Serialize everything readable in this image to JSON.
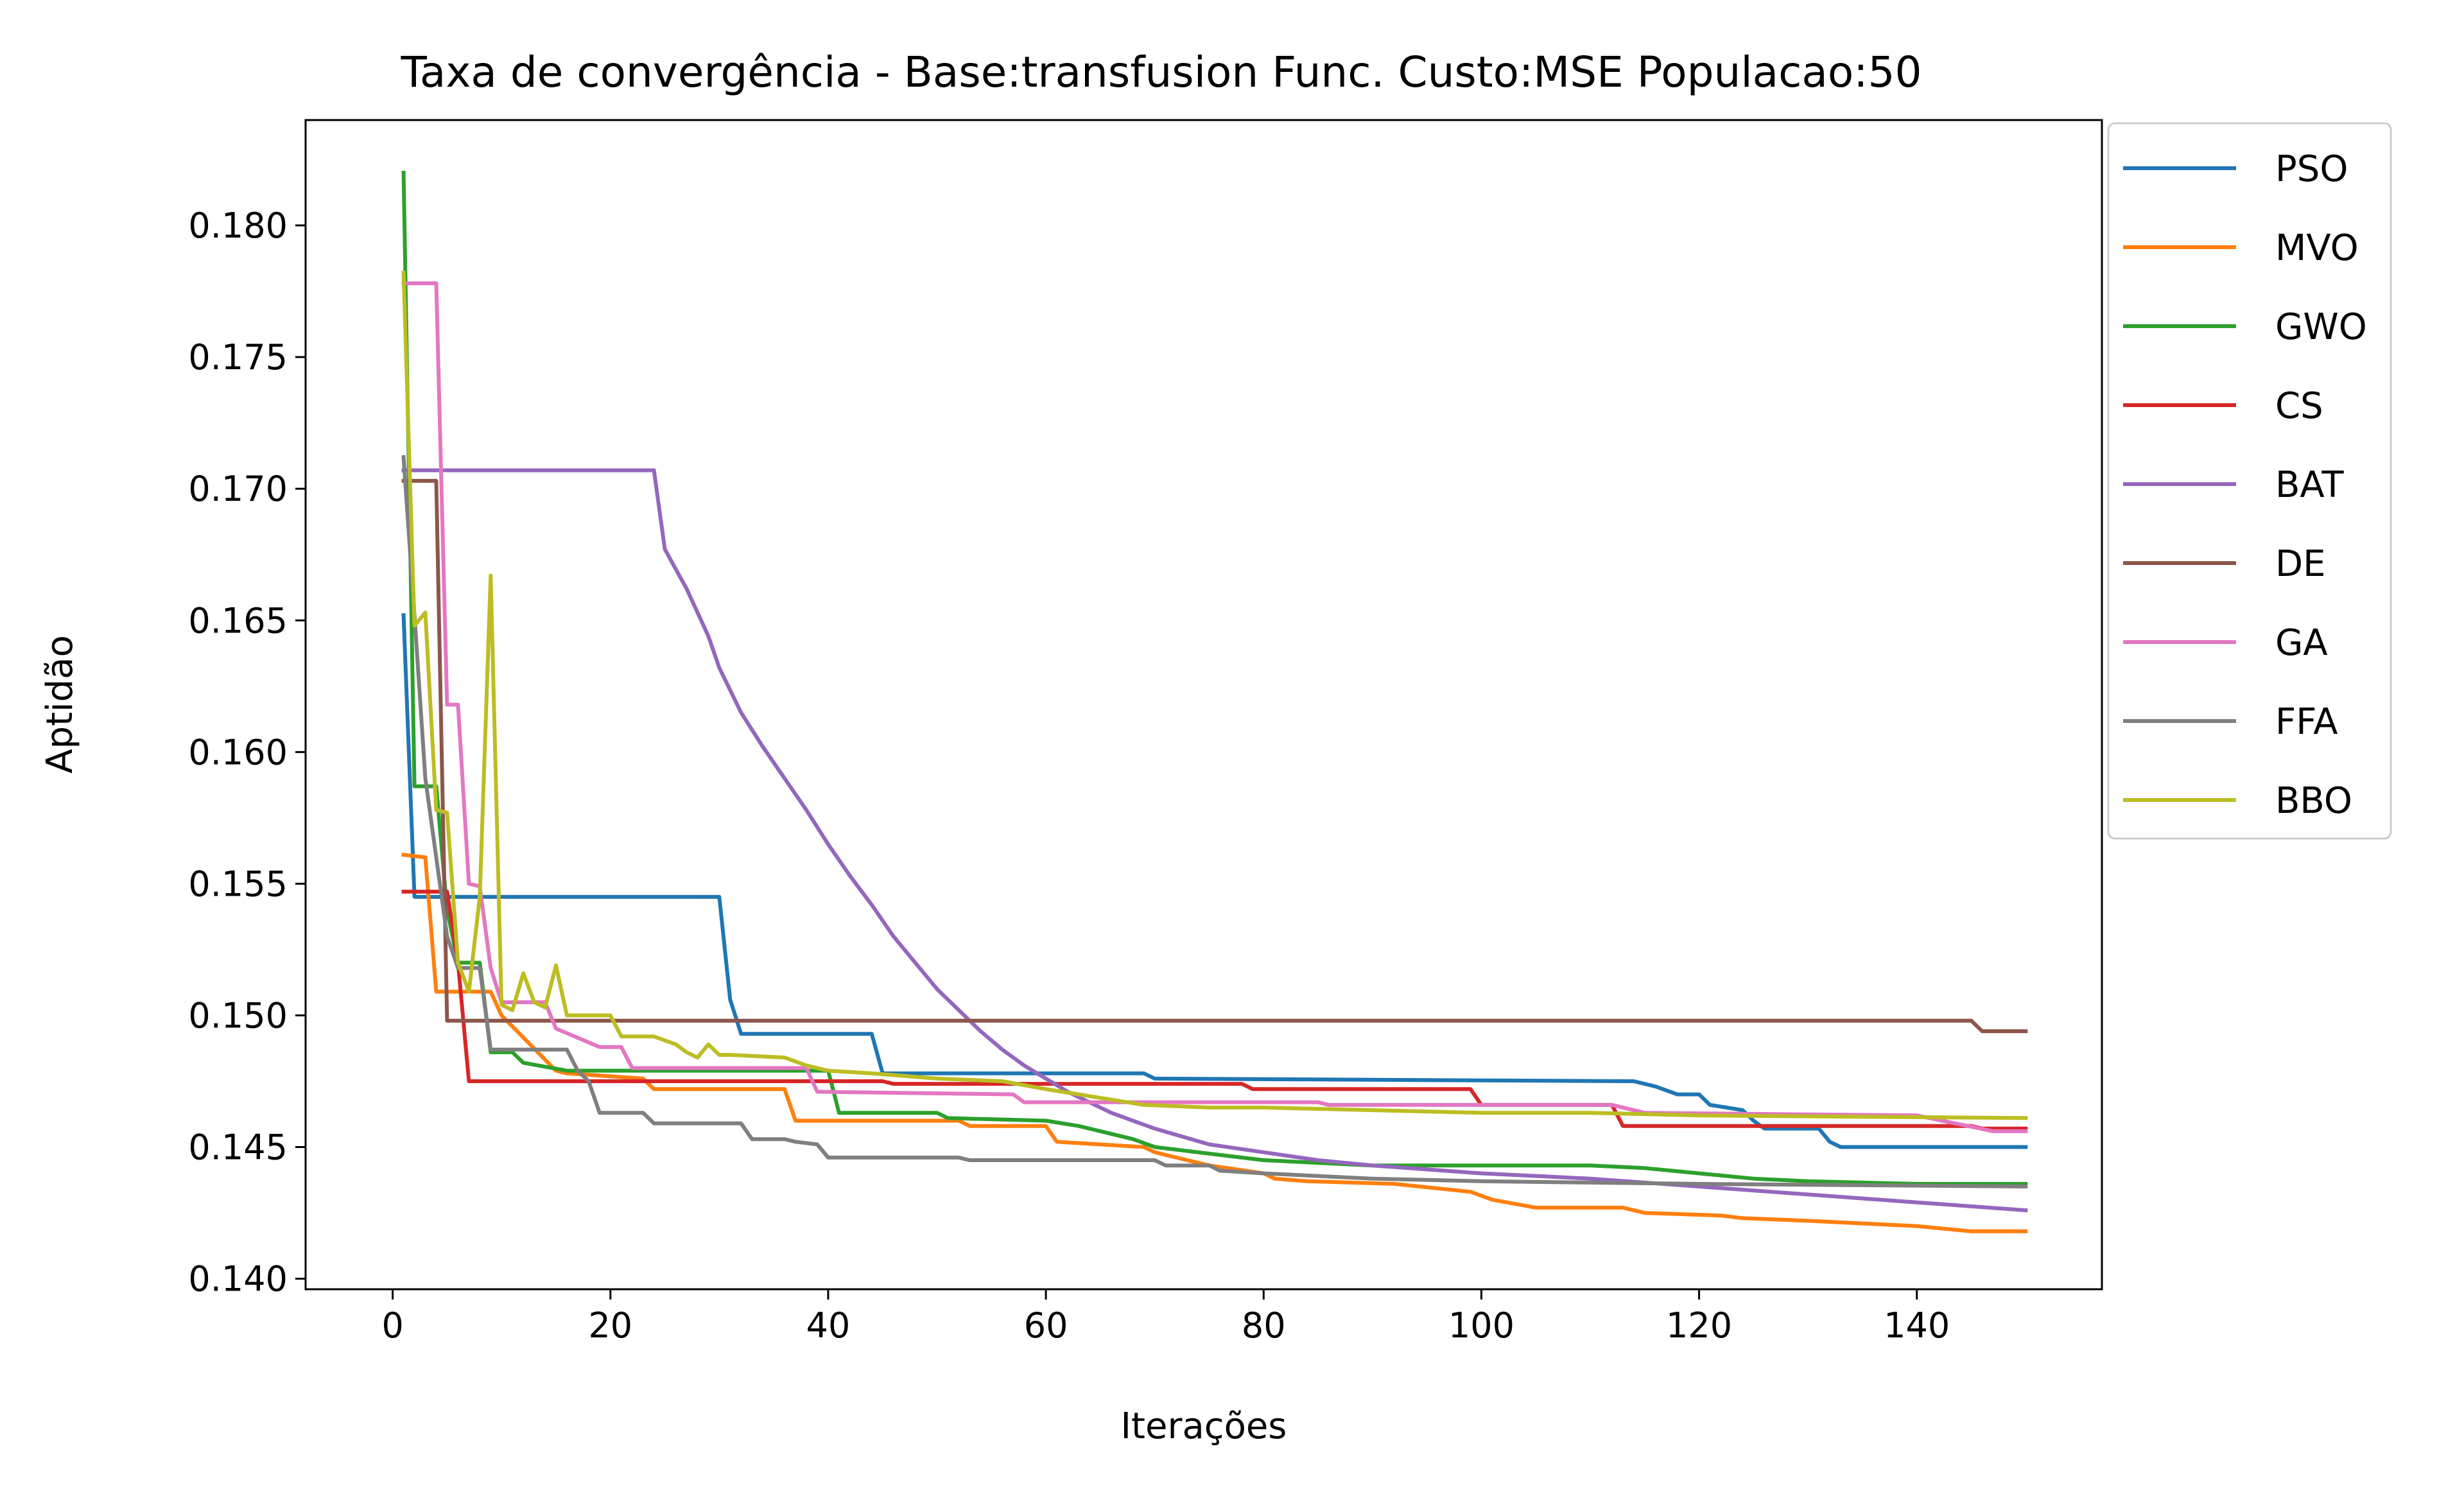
{
  "chart_data": {
    "type": "line",
    "title": "Taxa de convergência - Base:transfusion Func. Custo:MSE Populacao:50",
    "xlabel": "Iterações",
    "ylabel": "Aptidão",
    "xlim": [
      -8,
      157
    ],
    "ylim": [
      0.1396,
      0.184
    ],
    "xticks": [
      0,
      20,
      40,
      60,
      80,
      100,
      120,
      140
    ],
    "yticks": [
      0.14,
      0.145,
      0.15,
      0.155,
      0.16,
      0.165,
      0.17,
      0.175,
      0.18
    ],
    "ytick_labels": [
      "0.140",
      "0.145",
      "0.150",
      "0.155",
      "0.160",
      "0.165",
      "0.170",
      "0.175",
      "0.180"
    ],
    "grid": false,
    "legend_position": "outside top-right",
    "series": [
      {
        "name": "PSO",
        "color": "#1f77b4",
        "points": [
          [
            1,
            0.1652
          ],
          [
            2,
            0.1545
          ],
          [
            30,
            0.1545
          ],
          [
            31,
            0.1506
          ],
          [
            32,
            0.1493
          ],
          [
            44,
            0.1493
          ],
          [
            45,
            0.1478
          ],
          [
            69,
            0.1478
          ],
          [
            70,
            0.1476
          ],
          [
            114,
            0.1475
          ],
          [
            116,
            0.1473
          ],
          [
            118,
            0.147
          ],
          [
            120,
            0.147
          ],
          [
            121,
            0.1466
          ],
          [
            124,
            0.1464
          ],
          [
            125,
            0.146
          ],
          [
            126,
            0.1457
          ],
          [
            131,
            0.1457
          ],
          [
            132,
            0.1452
          ],
          [
            133,
            0.145
          ],
          [
            150,
            0.145
          ]
        ]
      },
      {
        "name": "MVO",
        "color": "#ff7f0e",
        "points": [
          [
            1,
            0.1561
          ],
          [
            3,
            0.156
          ],
          [
            4,
            0.1509
          ],
          [
            9,
            0.1509
          ],
          [
            10,
            0.15
          ],
          [
            15,
            0.1479
          ],
          [
            16,
            0.1478
          ],
          [
            23,
            0.1476
          ],
          [
            24,
            0.1472
          ],
          [
            36,
            0.1472
          ],
          [
            37,
            0.146
          ],
          [
            52,
            0.146
          ],
          [
            53,
            0.1458
          ],
          [
            60,
            0.1458
          ],
          [
            61,
            0.1452
          ],
          [
            69,
            0.145
          ],
          [
            70,
            0.1448
          ],
          [
            75,
            0.1443
          ],
          [
            80,
            0.144
          ],
          [
            81,
            0.1438
          ],
          [
            84,
            0.1437
          ],
          [
            92,
            0.1436
          ],
          [
            99,
            0.1433
          ],
          [
            101,
            0.143
          ],
          [
            105,
            0.1427
          ],
          [
            113,
            0.1427
          ],
          [
            115,
            0.1425
          ],
          [
            122,
            0.1424
          ],
          [
            124,
            0.1423
          ],
          [
            130,
            0.1422
          ],
          [
            135,
            0.1421
          ],
          [
            140,
            0.142
          ],
          [
            145,
            0.1418
          ],
          [
            150,
            0.1418
          ]
        ]
      },
      {
        "name": "GWO",
        "color": "#2ca02c",
        "points": [
          [
            1,
            0.182
          ],
          [
            2,
            0.1587
          ],
          [
            4,
            0.1587
          ],
          [
            5,
            0.154
          ],
          [
            6,
            0.152
          ],
          [
            8,
            0.152
          ],
          [
            9,
            0.1486
          ],
          [
            11,
            0.1486
          ],
          [
            12,
            0.1482
          ],
          [
            16,
            0.1479
          ],
          [
            40,
            0.1479
          ],
          [
            41,
            0.1463
          ],
          [
            50,
            0.1463
          ],
          [
            51,
            0.1461
          ],
          [
            60,
            0.146
          ],
          [
            63,
            0.1458
          ],
          [
            68,
            0.1453
          ],
          [
            70,
            0.145
          ],
          [
            78,
            0.1446
          ],
          [
            80,
            0.1445
          ],
          [
            85,
            0.1444
          ],
          [
            90,
            0.1443
          ],
          [
            110,
            0.1443
          ],
          [
            115,
            0.1442
          ],
          [
            120,
            0.144
          ],
          [
            125,
            0.1438
          ],
          [
            130,
            0.1437
          ],
          [
            140,
            0.1436
          ],
          [
            150,
            0.1436
          ]
        ]
      },
      {
        "name": "CS",
        "color": "#d62728",
        "points": [
          [
            1,
            0.1547
          ],
          [
            5,
            0.1547
          ],
          [
            6,
            0.152
          ],
          [
            7,
            0.1475
          ],
          [
            45,
            0.1475
          ],
          [
            46,
            0.1474
          ],
          [
            78,
            0.1474
          ],
          [
            79,
            0.1472
          ],
          [
            99,
            0.1472
          ],
          [
            100,
            0.1466
          ],
          [
            112,
            0.1466
          ],
          [
            113,
            0.1458
          ],
          [
            145,
            0.1458
          ],
          [
            146,
            0.1457
          ],
          [
            150,
            0.1457
          ]
        ]
      },
      {
        "name": "BAT",
        "color": "#9467bd",
        "points": [
          [
            1,
            0.1707
          ],
          [
            24,
            0.1707
          ],
          [
            25,
            0.1677
          ],
          [
            27,
            0.1662
          ],
          [
            29,
            0.1644
          ],
          [
            30,
            0.1632
          ],
          [
            32,
            0.1615
          ],
          [
            34,
            0.1602
          ],
          [
            36,
            0.159
          ],
          [
            38,
            0.1578
          ],
          [
            40,
            0.1565
          ],
          [
            42,
            0.1553
          ],
          [
            44,
            0.1542
          ],
          [
            46,
            0.153
          ],
          [
            48,
            0.152
          ],
          [
            50,
            0.151
          ],
          [
            52,
            0.1502
          ],
          [
            54,
            0.1494
          ],
          [
            56,
            0.1487
          ],
          [
            58,
            0.1481
          ],
          [
            60,
            0.1476
          ],
          [
            62,
            0.1471
          ],
          [
            64,
            0.1467
          ],
          [
            66,
            0.1463
          ],
          [
            68,
            0.146
          ],
          [
            70,
            0.1457
          ],
          [
            75,
            0.1451
          ],
          [
            80,
            0.1448
          ],
          [
            85,
            0.1445
          ],
          [
            90,
            0.1443
          ],
          [
            100,
            0.144
          ],
          [
            110,
            0.1438
          ],
          [
            120,
            0.1435
          ],
          [
            130,
            0.1432
          ],
          [
            140,
            0.1429
          ],
          [
            150,
            0.1426
          ]
        ]
      },
      {
        "name": "DE",
        "color": "#8c564b",
        "points": [
          [
            1,
            0.1703
          ],
          [
            4,
            0.1703
          ],
          [
            5,
            0.1498
          ],
          [
            145,
            0.1498
          ],
          [
            146,
            0.1494
          ],
          [
            150,
            0.1494
          ]
        ]
      },
      {
        "name": "GA",
        "color": "#e377c2",
        "points": [
          [
            1,
            0.1778
          ],
          [
            4,
            0.1778
          ],
          [
            5,
            0.1618
          ],
          [
            6,
            0.1618
          ],
          [
            7,
            0.155
          ],
          [
            8,
            0.1549
          ],
          [
            9,
            0.1518
          ],
          [
            10,
            0.1505
          ],
          [
            14,
            0.1505
          ],
          [
            15,
            0.1495
          ],
          [
            19,
            0.1488
          ],
          [
            21,
            0.1488
          ],
          [
            22,
            0.148
          ],
          [
            38,
            0.148
          ],
          [
            39,
            0.1471
          ],
          [
            57,
            0.147
          ],
          [
            58,
            0.1467
          ],
          [
            80,
            0.1467
          ],
          [
            85,
            0.1467
          ],
          [
            86,
            0.1466
          ],
          [
            112,
            0.1466
          ],
          [
            115,
            0.1463
          ],
          [
            140,
            0.1462
          ],
          [
            147,
            0.1456
          ],
          [
            150,
            0.1456
          ]
        ]
      },
      {
        "name": "FFA",
        "color": "#7f7f7f",
        "points": [
          [
            1,
            0.1712
          ],
          [
            2,
            0.1652
          ],
          [
            3,
            0.159
          ],
          [
            4,
            0.156
          ],
          [
            5,
            0.153
          ],
          [
            6,
            0.1518
          ],
          [
            8,
            0.1518
          ],
          [
            9,
            0.1487
          ],
          [
            16,
            0.1487
          ],
          [
            17,
            0.1479
          ],
          [
            18,
            0.1475
          ],
          [
            19,
            0.1463
          ],
          [
            23,
            0.1463
          ],
          [
            24,
            0.1459
          ],
          [
            32,
            0.1459
          ],
          [
            33,
            0.1453
          ],
          [
            36,
            0.1453
          ],
          [
            37,
            0.1452
          ],
          [
            39,
            0.1451
          ],
          [
            40,
            0.1446
          ],
          [
            52,
            0.1446
          ],
          [
            53,
            0.1445
          ],
          [
            70,
            0.1445
          ],
          [
            71,
            0.1443
          ],
          [
            75,
            0.1443
          ],
          [
            76,
            0.1441
          ],
          [
            80,
            0.144
          ],
          [
            90,
            0.1438
          ],
          [
            100,
            0.1437
          ],
          [
            120,
            0.1436
          ],
          [
            150,
            0.1435
          ]
        ]
      },
      {
        "name": "BBO",
        "color": "#bcbd22",
        "points": [
          [
            1,
            0.1782
          ],
          [
            2,
            0.1648
          ],
          [
            3,
            0.1653
          ],
          [
            4,
            0.1578
          ],
          [
            5,
            0.1577
          ],
          [
            6,
            0.152
          ],
          [
            7,
            0.1509
          ],
          [
            8,
            0.1545
          ],
          [
            9,
            0.1667
          ],
          [
            10,
            0.1504
          ],
          [
            11,
            0.1502
          ],
          [
            12,
            0.1516
          ],
          [
            13,
            0.1505
          ],
          [
            14,
            0.1503
          ],
          [
            15,
            0.1519
          ],
          [
            16,
            0.15
          ],
          [
            20,
            0.15
          ],
          [
            21,
            0.1492
          ],
          [
            24,
            0.1492
          ],
          [
            26,
            0.1489
          ],
          [
            27,
            0.1486
          ],
          [
            28,
            0.1484
          ],
          [
            29,
            0.1489
          ],
          [
            30,
            0.1485
          ],
          [
            31,
            0.1485
          ],
          [
            36,
            0.1484
          ],
          [
            38,
            0.1481
          ],
          [
            40,
            0.1479
          ],
          [
            44,
            0.1478
          ],
          [
            50,
            0.1476
          ],
          [
            56,
            0.1475
          ],
          [
            60,
            0.1472
          ],
          [
            63,
            0.147
          ],
          [
            66,
            0.1468
          ],
          [
            69,
            0.1466
          ],
          [
            75,
            0.1465
          ],
          [
            80,
            0.1465
          ],
          [
            90,
            0.1464
          ],
          [
            100,
            0.1463
          ],
          [
            110,
            0.1463
          ],
          [
            120,
            0.1462
          ],
          [
            150,
            0.1461
          ]
        ]
      }
    ]
  }
}
